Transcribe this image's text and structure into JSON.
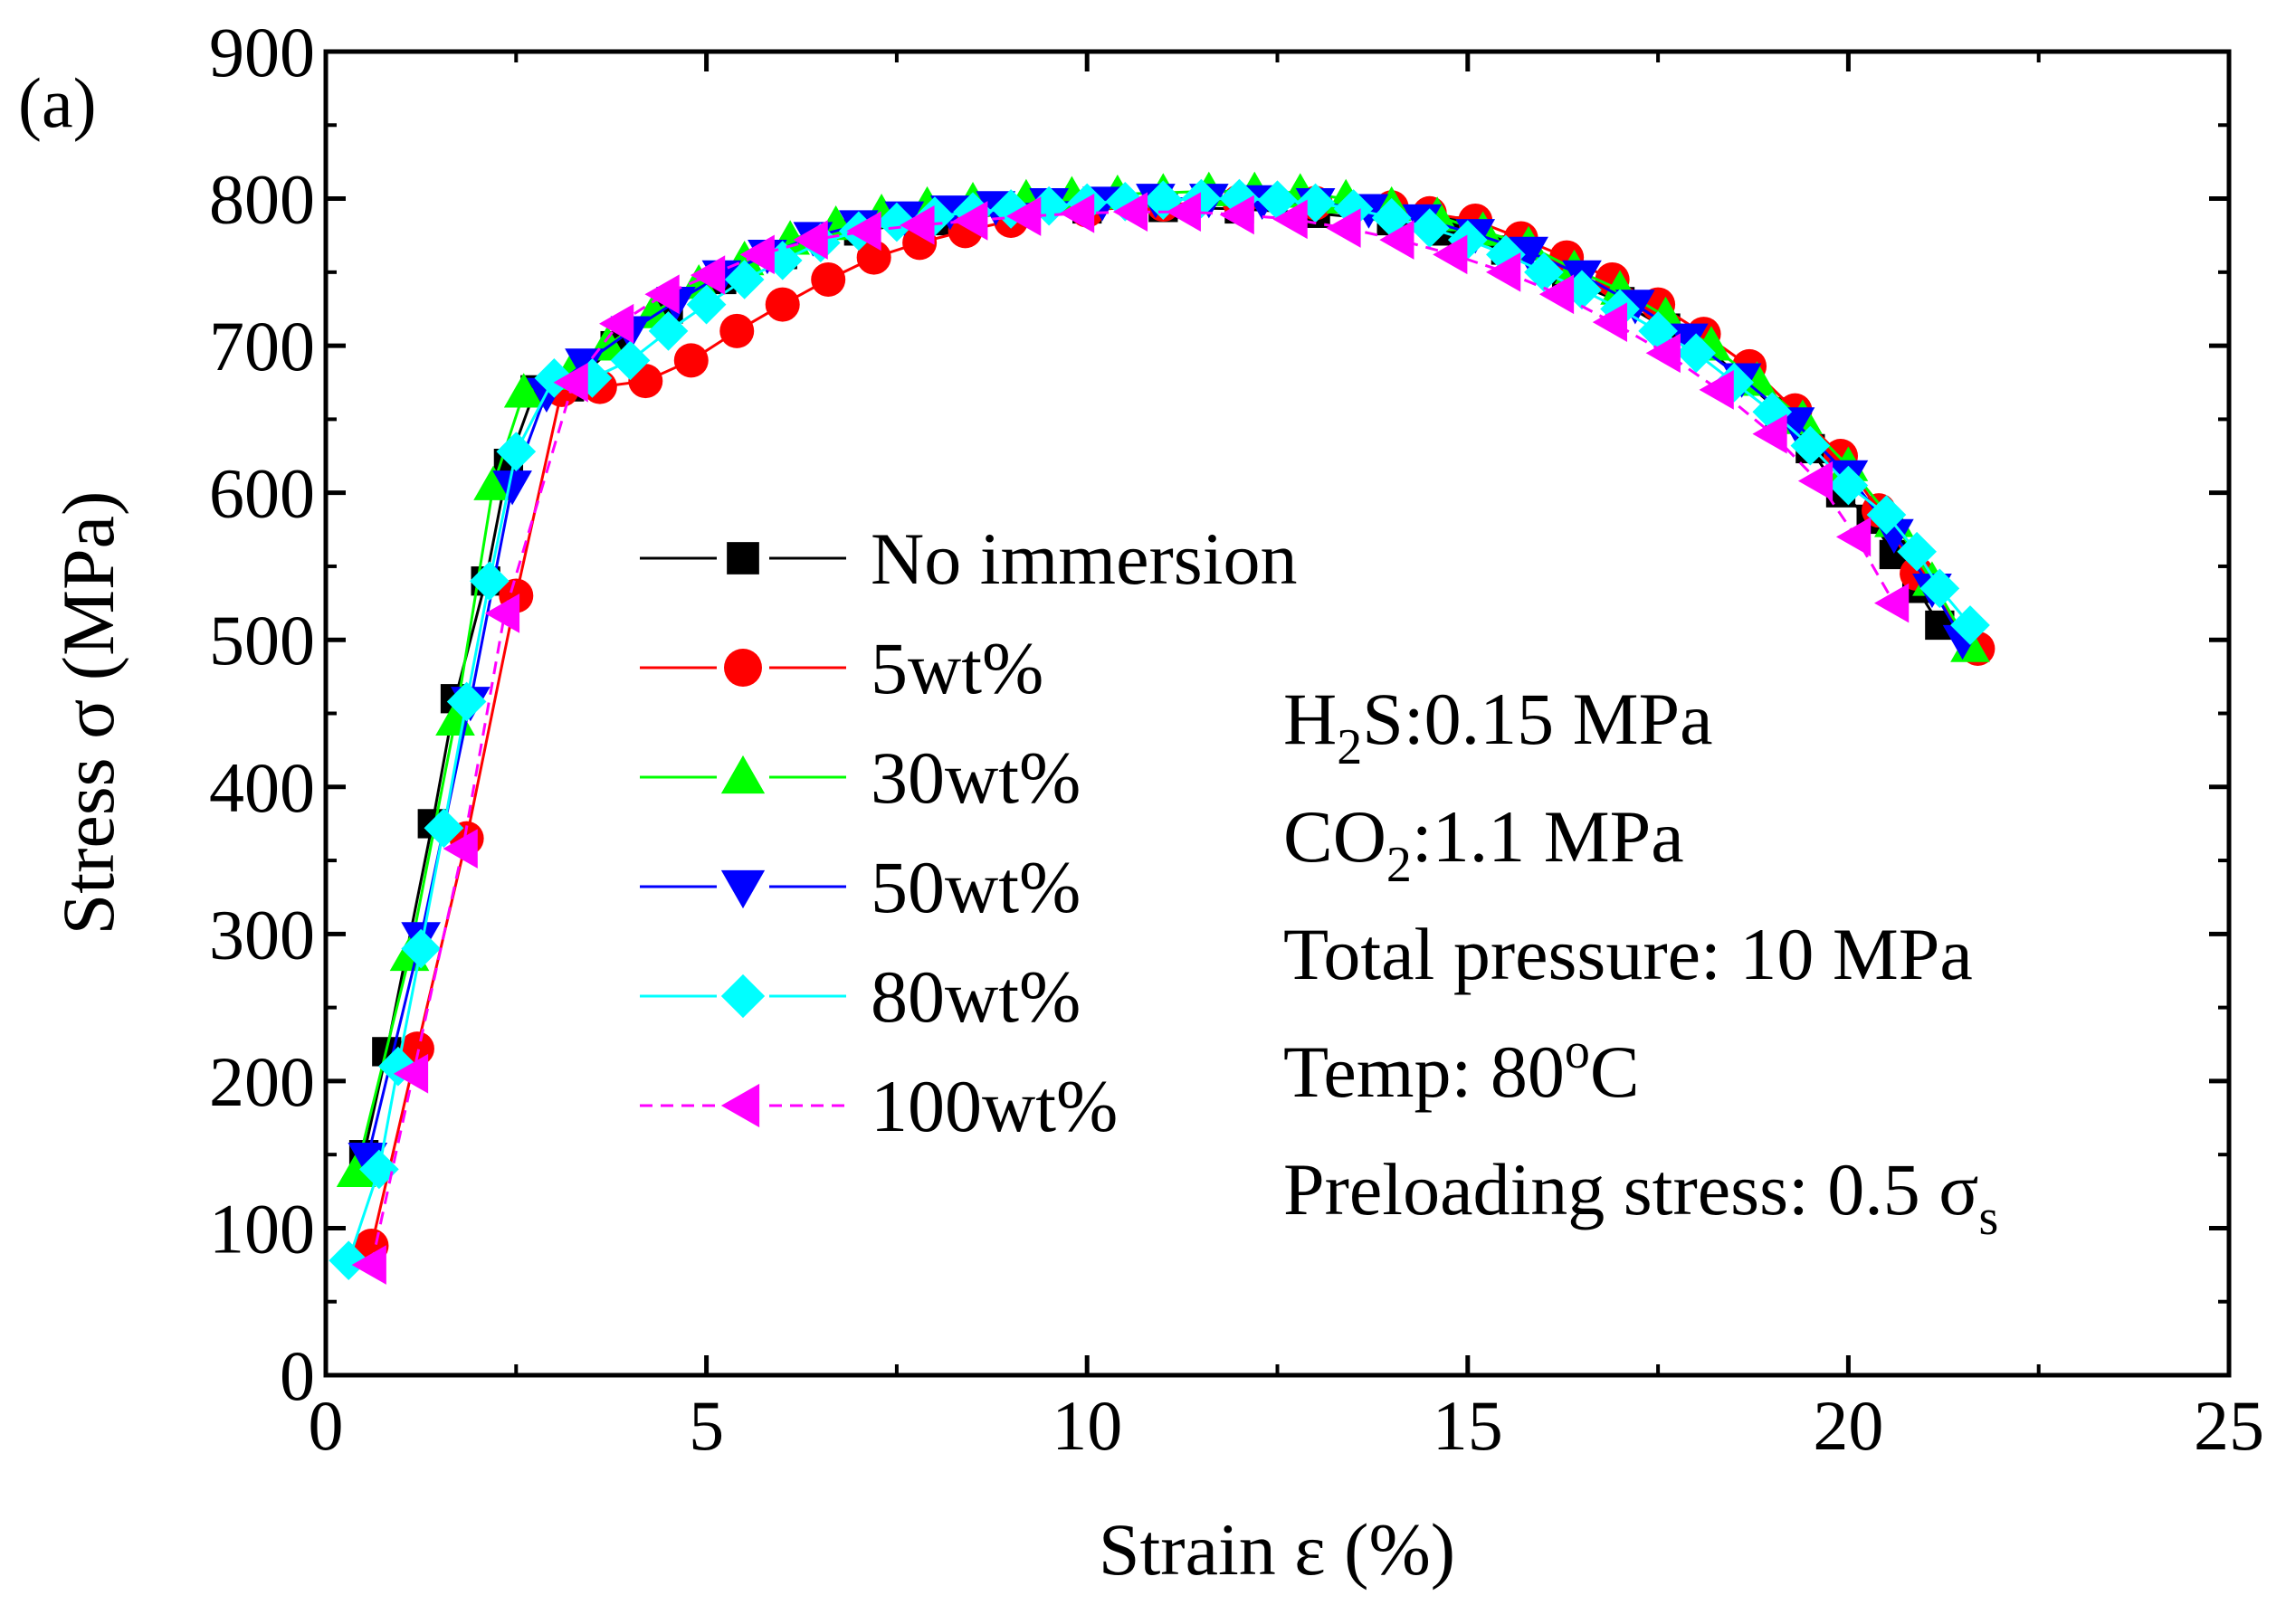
{
  "chart_data": {
    "type": "line",
    "panel_label": "(a)",
    "xlabel": "Strain ε (%)",
    "ylabel": "Stress σ (MPa)",
    "xlim": [
      0,
      25
    ],
    "ylim": [
      0,
      900
    ],
    "xticks": [
      0,
      5,
      10,
      15,
      20,
      25
    ],
    "yticks": [
      0,
      100,
      200,
      300,
      400,
      500,
      600,
      700,
      800,
      900
    ],
    "grid": false,
    "legend_position": "center-left",
    "annotations": [
      {
        "parts": [
          {
            "t": "H"
          },
          {
            "t": "2",
            "sub": true
          },
          {
            "t": "S:0.15 MPa"
          }
        ]
      },
      {
        "parts": [
          {
            "t": "CO"
          },
          {
            "t": "2",
            "sub": true
          },
          {
            "t": ":1.1 MPa"
          }
        ]
      },
      {
        "parts": [
          {
            "t": "Total pressure: 10 MPa"
          }
        ]
      },
      {
        "parts": [
          {
            "t": "Temp: 80"
          },
          {
            "t": "o",
            "sup": true
          },
          {
            "t": "C"
          }
        ]
      },
      {
        "parts": [
          {
            "t": "Preloading stress: 0.5 σ"
          },
          {
            "t": "s",
            "sub": true
          }
        ]
      }
    ],
    "series": [
      {
        "name": "No immersion",
        "color": "#000000",
        "marker": "square",
        "dash": "",
        "points": [
          [
            0.5,
            150
          ],
          [
            0.8,
            220
          ],
          [
            1.4,
            375
          ],
          [
            1.7,
            460
          ],
          [
            2.1,
            540
          ],
          [
            2.4,
            620
          ],
          [
            2.75,
            670
          ],
          [
            3.2,
            672
          ],
          [
            3.8,
            700
          ],
          [
            4.5,
            725
          ],
          [
            5.2,
            745
          ],
          [
            6,
            762
          ],
          [
            7,
            778
          ],
          [
            8,
            785
          ],
          [
            9,
            790
          ],
          [
            10,
            793
          ],
          [
            11,
            794
          ],
          [
            12,
            793
          ],
          [
            13,
            790
          ],
          [
            14,
            785
          ],
          [
            14.7,
            778
          ],
          [
            15.5,
            765
          ],
          [
            16.3,
            745
          ],
          [
            17,
            730
          ],
          [
            17.6,
            712
          ],
          [
            18.1,
            700
          ],
          [
            18.6,
            678
          ],
          [
            19.1,
            655
          ],
          [
            19.5,
            630
          ],
          [
            19.9,
            600
          ],
          [
            20.3,
            582
          ],
          [
            20.6,
            558
          ],
          [
            20.9,
            535
          ],
          [
            21.2,
            510
          ]
        ]
      },
      {
        "name": "5wt%",
        "color": "#ff0000",
        "marker": "circle",
        "dash": "",
        "points": [
          [
            0.6,
            88
          ],
          [
            1.2,
            222
          ],
          [
            1.85,
            365
          ],
          [
            2.5,
            530
          ],
          [
            3.1,
            670
          ],
          [
            3.6,
            672
          ],
          [
            4.2,
            676
          ],
          [
            4.8,
            690
          ],
          [
            5.4,
            710
          ],
          [
            6,
            728
          ],
          [
            6.6,
            745
          ],
          [
            7.2,
            760
          ],
          [
            7.8,
            770
          ],
          [
            8.4,
            778
          ],
          [
            9,
            785
          ],
          [
            10,
            792
          ],
          [
            11,
            796
          ],
          [
            12,
            798
          ],
          [
            13,
            797
          ],
          [
            14,
            794
          ],
          [
            14.5,
            790
          ],
          [
            15.1,
            785
          ],
          [
            15.7,
            773
          ],
          [
            16.3,
            760
          ],
          [
            16.9,
            745
          ],
          [
            17.5,
            728
          ],
          [
            18.1,
            708
          ],
          [
            18.7,
            686
          ],
          [
            19.3,
            656
          ],
          [
            19.9,
            625
          ],
          [
            20.4,
            588
          ],
          [
            20.9,
            545
          ],
          [
            21.7,
            494
          ]
        ]
      },
      {
        "name": "30wt%",
        "color": "#00ff00",
        "marker": "triangle-up",
        "dash": "",
        "points": [
          [
            0.4,
            138
          ],
          [
            1.1,
            285
          ],
          [
            1.7,
            445
          ],
          [
            2.2,
            605
          ],
          [
            2.6,
            668
          ],
          [
            3.2,
            680
          ],
          [
            3.7,
            700
          ],
          [
            4.3,
            722
          ],
          [
            4.9,
            742
          ],
          [
            5.5,
            758
          ],
          [
            6.1,
            772
          ],
          [
            6.7,
            782
          ],
          [
            7.3,
            790
          ],
          [
            7.9,
            795
          ],
          [
            8.5,
            798
          ],
          [
            9.2,
            800
          ],
          [
            9.8,
            802
          ],
          [
            10.4,
            803
          ],
          [
            11,
            804
          ],
          [
            11.6,
            805
          ],
          [
            12.2,
            805
          ],
          [
            12.8,
            804
          ],
          [
            13.4,
            800
          ],
          [
            14,
            795
          ],
          [
            14.6,
            788
          ],
          [
            15.2,
            778
          ],
          [
            15.8,
            768
          ],
          [
            16.4,
            752
          ],
          [
            17,
            738
          ],
          [
            17.6,
            720
          ],
          [
            18.2,
            700
          ],
          [
            18.8,
            676
          ],
          [
            19.4,
            650
          ],
          [
            20,
            618
          ],
          [
            20.6,
            580
          ],
          [
            21.1,
            540
          ],
          [
            21.6,
            495
          ]
        ]
      },
      {
        "name": "50wt%",
        "color": "#0000ff",
        "marker": "triangle-down",
        "dash": "",
        "points": [
          [
            0.55,
            148
          ],
          [
            1.25,
            298
          ],
          [
            1.9,
            458
          ],
          [
            2.45,
            605
          ],
          [
            2.9,
            668
          ],
          [
            3.4,
            688
          ],
          [
            4,
            710
          ],
          [
            4.6,
            730
          ],
          [
            5.2,
            748
          ],
          [
            5.8,
            762
          ],
          [
            6.4,
            774
          ],
          [
            7,
            782
          ],
          [
            7.6,
            788
          ],
          [
            8.2,
            792
          ],
          [
            8.8,
            795
          ],
          [
            9.5,
            797
          ],
          [
            10.2,
            798
          ],
          [
            10.9,
            800
          ],
          [
            11.6,
            800
          ],
          [
            12.3,
            799
          ],
          [
            13,
            797
          ],
          [
            13.7,
            793
          ],
          [
            14.4,
            786
          ],
          [
            15.1,
            776
          ],
          [
            15.8,
            764
          ],
          [
            16.5,
            748
          ],
          [
            17.2,
            728
          ],
          [
            17.9,
            705
          ],
          [
            18.6,
            678
          ],
          [
            19.3,
            648
          ],
          [
            20,
            612
          ],
          [
            20.6,
            572
          ],
          [
            21.1,
            535
          ],
          [
            21.5,
            500
          ]
        ]
      },
      {
        "name": "80wt%",
        "color": "#00ffff",
        "marker": "diamond",
        "dash": "",
        "points": [
          [
            0.3,
            78
          ],
          [
            0.7,
            140
          ],
          [
            0.95,
            210
          ],
          [
            1.25,
            290
          ],
          [
            1.55,
            372
          ],
          [
            1.85,
            458
          ],
          [
            2.15,
            540
          ],
          [
            2.5,
            628
          ],
          [
            3,
            678
          ],
          [
            3.5,
            678
          ],
          [
            4,
            690
          ],
          [
            4.5,
            710
          ],
          [
            5,
            728
          ],
          [
            5.5,
            745
          ],
          [
            6,
            758
          ],
          [
            6.5,
            770
          ],
          [
            7,
            778
          ],
          [
            7.5,
            784
          ],
          [
            8,
            788
          ],
          [
            8.5,
            791
          ],
          [
            9,
            793
          ],
          [
            9.5,
            795
          ],
          [
            10,
            797
          ],
          [
            10.5,
            798
          ],
          [
            11,
            799
          ],
          [
            11.5,
            800
          ],
          [
            12,
            800
          ],
          [
            12.5,
            799
          ],
          [
            13,
            797
          ],
          [
            13.5,
            793
          ],
          [
            14,
            787
          ],
          [
            14.5,
            780
          ],
          [
            15,
            772
          ],
          [
            15.5,
            762
          ],
          [
            16,
            750
          ],
          [
            16.5,
            738
          ],
          [
            17,
            725
          ],
          [
            17.5,
            710
          ],
          [
            18,
            695
          ],
          [
            18.5,
            675
          ],
          [
            19,
            655
          ],
          [
            19.5,
            632
          ],
          [
            20,
            605
          ],
          [
            20.5,
            585
          ],
          [
            20.9,
            560
          ],
          [
            21.2,
            535
          ],
          [
            21.6,
            510
          ]
        ]
      },
      {
        "name": "100wt%",
        "color": "#ff00ff",
        "marker": "triangle-left",
        "dash": "14 9",
        "points": [
          [
            0.6,
            75
          ],
          [
            1.15,
            205
          ],
          [
            1.8,
            358
          ],
          [
            2.35,
            518
          ],
          [
            3.25,
            675
          ],
          [
            3.85,
            715
          ],
          [
            4.45,
            735
          ],
          [
            5.05,
            748
          ],
          [
            5.7,
            762
          ],
          [
            6.4,
            772
          ],
          [
            7.1,
            778
          ],
          [
            7.8,
            782
          ],
          [
            8.5,
            785
          ],
          [
            9.2,
            788
          ],
          [
            9.9,
            790
          ],
          [
            10.6,
            791
          ],
          [
            11.3,
            791
          ],
          [
            12,
            789
          ],
          [
            12.7,
            786
          ],
          [
            13.4,
            780
          ],
          [
            14.1,
            772
          ],
          [
            14.8,
            762
          ],
          [
            15.5,
            750
          ],
          [
            16.2,
            735
          ],
          [
            16.9,
            716
          ],
          [
            17.6,
            695
          ],
          [
            18.3,
            670
          ],
          [
            19,
            640
          ],
          [
            19.6,
            608
          ],
          [
            20.1,
            570
          ],
          [
            20.6,
            525
          ]
        ]
      }
    ]
  }
}
